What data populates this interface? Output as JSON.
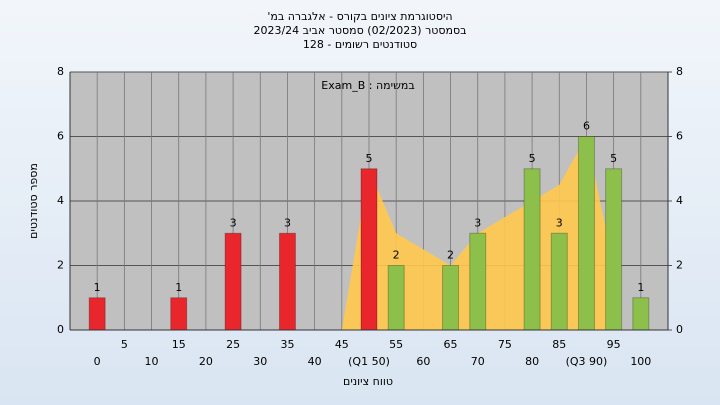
{
  "chart_data": {
    "type": "bar",
    "title": "היסטוגרמת ציונים בקורס - אלגברה במ'",
    "subtitle": "בסמסטר  (02/2023)  סמסטר אביב 2023/24",
    "subtitle2": "סטודנטים רשומים - 128",
    "annotation": "במשימה : Exam_B",
    "xlabel": "טווח ציונים",
    "ylabel": "מספר סטודנטים",
    "categories": [
      "0",
      "5",
      "10",
      "15",
      "20",
      "25",
      "30",
      "35",
      "40",
      "45",
      "(Q1 50)",
      "55",
      "60",
      "65",
      "70",
      "75",
      "80",
      "85",
      "(Q3 90)",
      "95",
      "100"
    ],
    "values": [
      1,
      0,
      0,
      1,
      0,
      3,
      0,
      3,
      0,
      0,
      5,
      2,
      0,
      2,
      3,
      0,
      5,
      3,
      6,
      5,
      1
    ],
    "colors": [
      "#e8262b",
      "#e8262b",
      "#e8262b",
      "#e8262b",
      "#e8262b",
      "#e8262b",
      "#e8262b",
      "#e8262b",
      "#e8262b",
      "#e8262b",
      "#e8262b",
      "#8cc04a",
      "#8cc04a",
      "#8cc04a",
      "#8cc04a",
      "#8cc04a",
      "#8cc04a",
      "#8cc04a",
      "#8cc04a",
      "#8cc04a",
      "#8cc04a"
    ],
    "area": {
      "color": "#ffc94d",
      "values": [
        null,
        null,
        null,
        null,
        null,
        null,
        null,
        null,
        null,
        0,
        5,
        3,
        2.5,
        2,
        3,
        3.5,
        4,
        4.5,
        6,
        2,
        null
      ]
    },
    "ylim": [
      0,
      8
    ],
    "yticks": [
      0,
      2,
      4,
      6,
      8
    ],
    "y2lim": [
      0,
      8
    ],
    "y2ticks": [
      0,
      2,
      4,
      6,
      8
    ],
    "grid": true
  }
}
